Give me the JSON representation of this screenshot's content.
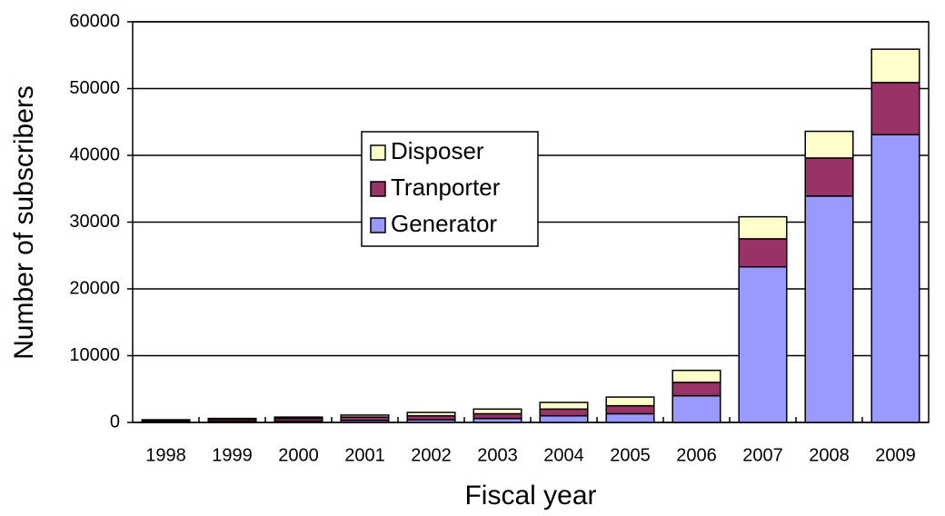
{
  "chart_data": {
    "type": "stacked_bar",
    "x_label": "Fiscal year",
    "y_label": "Number of subscribers",
    "categories": [
      "1998",
      "1999",
      "2000",
      "2001",
      "2002",
      "2003",
      "2004",
      "2005",
      "2006",
      "2007",
      "2008",
      "2009"
    ],
    "series": [
      {
        "name": "Generator",
        "color": "#9999ff",
        "values": [
          100,
          150,
          200,
          300,
          400,
          600,
          1000,
          1300,
          4000,
          23300,
          33900,
          43100
        ]
      },
      {
        "name": "Tranporter",
        "color": "#993366",
        "values": [
          200,
          300,
          400,
          500,
          600,
          700,
          1000,
          1200,
          2000,
          4200,
          5700,
          7800
        ]
      },
      {
        "name": "Disposer",
        "color": "#ffffcc",
        "values": [
          100,
          150,
          200,
          300,
          500,
          700,
          1000,
          1300,
          1800,
          3300,
          4000,
          5000
        ]
      }
    ],
    "ylim": [
      0,
      60000
    ],
    "yticks": [
      0,
      10000,
      20000,
      30000,
      40000,
      50000,
      60000
    ],
    "grid": true
  }
}
